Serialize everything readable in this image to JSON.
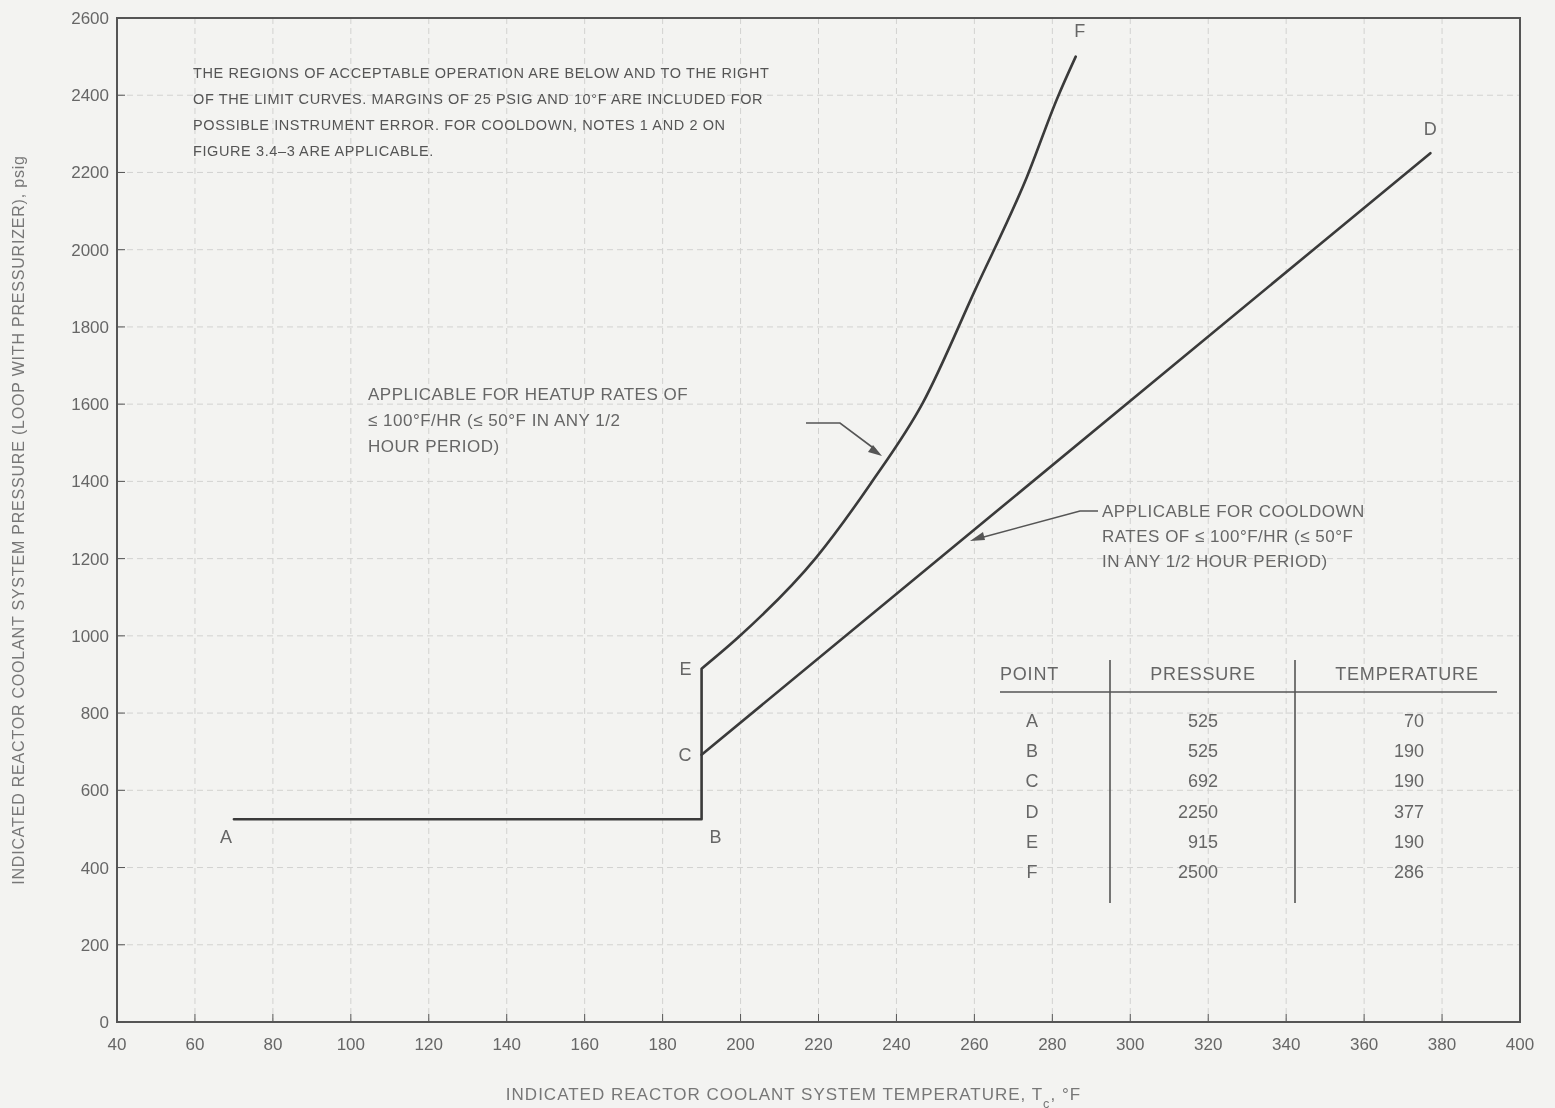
{
  "chart_data": {
    "type": "line",
    "xlabel": "INDICATED REACTOR COOLANT SYSTEM TEMPERATURE, T$_{c}$, °F",
    "ylabel": "INDICATED REACTOR COOLANT SYSTEM PRESSURE (LOOP WITH PRESSURIZER), psig",
    "xlim": [
      40,
      400
    ],
    "xticks": [
      40,
      60,
      80,
      100,
      120,
      140,
      160,
      180,
      200,
      220,
      240,
      260,
      280,
      300,
      320,
      340,
      360,
      380,
      400
    ],
    "ylim": [
      0,
      2600
    ],
    "yticks": [
      0,
      200,
      400,
      600,
      800,
      1000,
      1200,
      1400,
      1600,
      1800,
      2000,
      2200,
      2400,
      2600
    ],
    "grid": true,
    "marker": "none",
    "line_style": "solid",
    "series": [
      {
        "color": "#3a3a3a",
        "x": [
          70,
          190,
          190,
          199.5,
          219.5,
          233.5,
          246.8,
          260.2,
          273.5,
          281.3,
          286
        ],
        "values": [
          525,
          525,
          915,
          997,
          1204,
          1396,
          1604,
          1896,
          2189,
          2393,
          2500
        ]
      },
      {
        "color": "#3a3a3a",
        "x": [
          190,
          377
        ],
        "values": [
          692,
          2250
        ]
      }
    ],
    "annotations": [
      "THE REGIONS OF ACCEPTABLE OPERATION ARE BELOW AND TO THE RIGHT\nOF THE LIMIT CURVES.  MARGINS OF 25 PSIG AND 10°F ARE INCLUDED FOR\nPOSSIBLE  INSTRUMENT  ERROR.   FOR COOLDOWN, NOTES 1 AND 2 ON\nFIGURE 3.4–3 ARE APPLICABLE.",
      "APPLICABLE FOR HEATUP RATES OF\n≤ 100°F/HR (≤ 50°F IN ANY 1/2\nHOUR PERIOD)",
      "APPLICABLE FOR COOLDOWN\nRATES OF ≤ 100°F/HR (≤ 50°F\nIN ANY 1/2 HOUR PERIOD)",
      {
        "text": "A",
        "x": 70,
        "y": 525
      },
      {
        "text": "B",
        "x": 190,
        "y": 525
      },
      {
        "text": "C",
        "x": 190,
        "y": 692
      },
      {
        "text": "D",
        "x": 377,
        "y": 2250
      },
      {
        "text": "E",
        "x": 190,
        "y": 915
      },
      {
        "text": "F",
        "x": 286,
        "y": 2500
      },
      "POINT",
      "PRESSURE",
      "TEMPERATURE",
      "A",
      "525",
      "70",
      "B",
      "525",
      "190",
      "C",
      "692",
      "190",
      "D",
      "2250",
      "377",
      "E",
      "915",
      "190",
      "F",
      "2500",
      "286"
    ]
  }
}
